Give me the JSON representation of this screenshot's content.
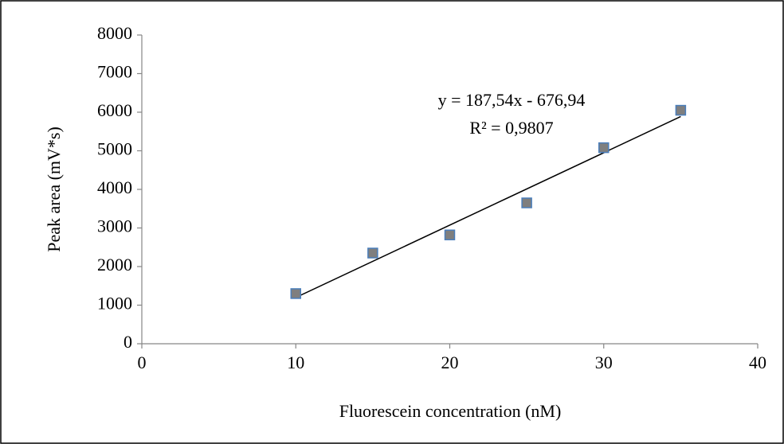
{
  "chart_data": {
    "type": "scatter",
    "x_label": "Fluorescein concentration (nM)",
    "y_label": "Peak area (mV*s)",
    "x": [
      10,
      15,
      20,
      25,
      30,
      35
    ],
    "values": [
      1300,
      2350,
      2820,
      3650,
      5080,
      6050
    ],
    "color": "#7f7f7f",
    "xlim": [
      0,
      40
    ],
    "xticks": [
      0,
      10,
      20,
      30,
      40
    ],
    "ylim": [
      0,
      8000
    ],
    "yticks": [
      0,
      1000,
      2000,
      3000,
      4000,
      5000,
      6000,
      7000,
      8000
    ],
    "grid": false,
    "trendline": {
      "slope": 187.54,
      "intercept": -676.94,
      "color": "#000000",
      "equation": "y = 187,54x - 676,94",
      "r2_label": "R² = 0,9807"
    }
  }
}
